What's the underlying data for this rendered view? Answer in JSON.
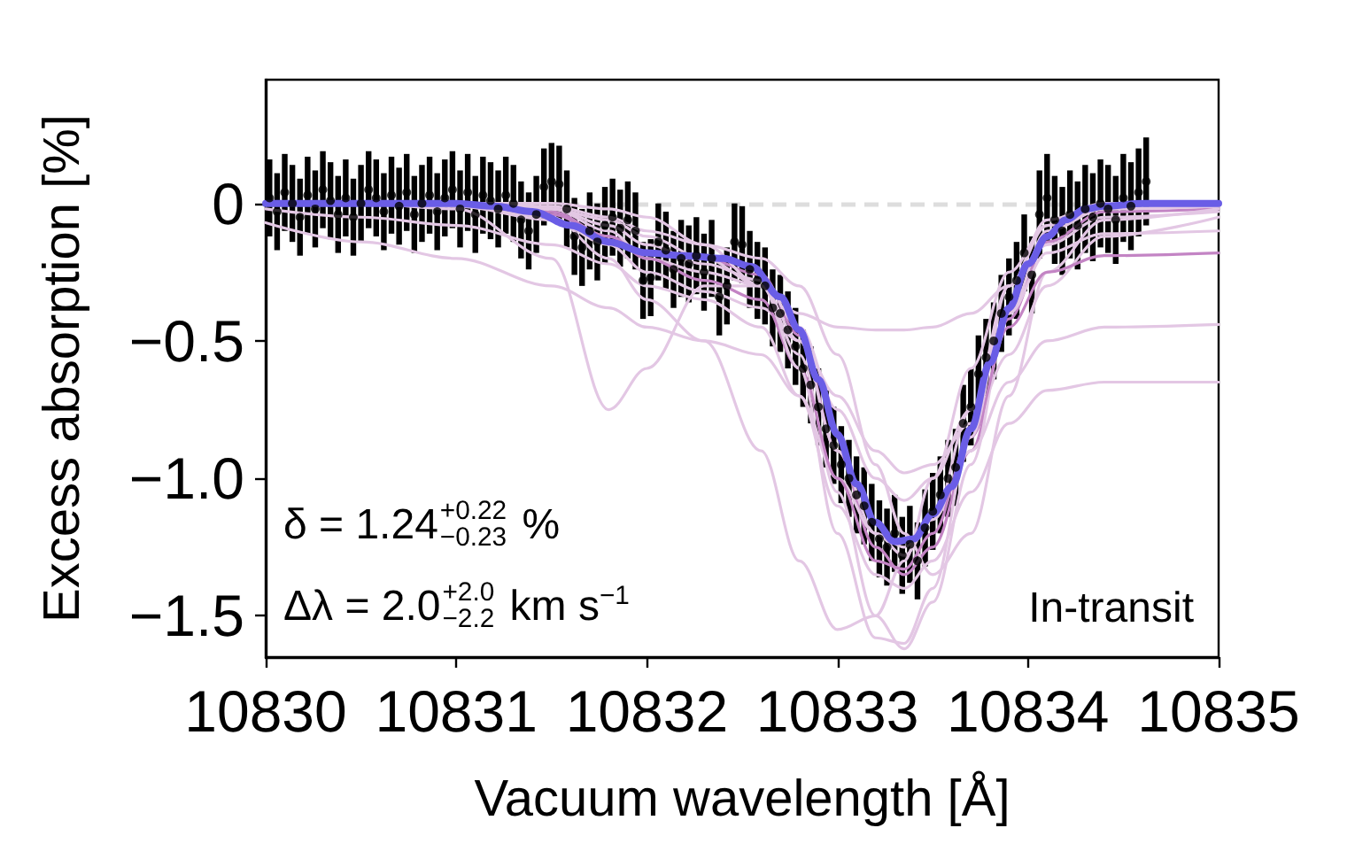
{
  "chart_data": {
    "type": "line",
    "xlabel": "Vacuum wavelength [Å]",
    "ylabel": "Excess absorption [%]",
    "xlim": [
      10830,
      10835
    ],
    "xticks": [
      10830,
      10831,
      10832,
      10833,
      10834,
      10835
    ],
    "ylim": [
      -1.65,
      0.45
    ],
    "yticks": [
      0,
      {
        "value": -0.5,
        "label": "−0.5"
      },
      {
        "value": -1,
        "label": "−1.0"
      },
      {
        "value": -1.5,
        "label": "−1.5"
      }
    ],
    "x": [
      10830,
      10830.5,
      10831,
      10831.5,
      10831.8,
      10832,
      10832.3,
      10832.6,
      10832.8,
      10833,
      10833.2,
      10833.35,
      10833.5,
      10833.7,
      10833.9,
      10834.1,
      10834.4,
      10835
    ],
    "ref_lines": [
      {
        "axis": "y",
        "value": 0,
        "color": "#dddddd",
        "line_style": "dashed"
      }
    ],
    "annotations": [
      "δ = 1.24$^{+0.22}$$_{−0.23}$ %",
      "Δλ = 2.0$^{+2.0}$$_{−2.2}$ km s$^{−1}$",
      "In-transit"
    ],
    "series": [
      {
        "color": "#c384c4",
        "values": [
          0,
          0,
          0,
          -0.03,
          -0.12,
          -0.18,
          -0.2,
          -0.26,
          -0.48,
          -0.9,
          -1.25,
          -1.35,
          -1.25,
          -0.9,
          -0.42,
          -0.14,
          -0.03,
          -0.02
        ]
      },
      {
        "color": "#e3c7e4",
        "values": [
          0,
          0,
          0,
          -0.02,
          -0.1,
          -0.2,
          -0.25,
          -0.3,
          -0.55,
          -1.05,
          -1.5,
          -1.62,
          -1.45,
          -0.95,
          -0.4,
          -0.1,
          -0.02,
          -0.01
        ]
      },
      {
        "color": "#e3c7e4",
        "values": [
          0,
          0,
          -0.01,
          -0.06,
          -0.15,
          -0.25,
          -0.32,
          -0.38,
          -0.5,
          -0.7,
          -0.9,
          -0.98,
          -0.95,
          -0.8,
          -0.55,
          -0.3,
          -0.12,
          -0.05
        ]
      },
      {
        "color": "#e3c7e4",
        "values": [
          -0.07,
          -0.14,
          -0.2,
          -0.3,
          -0.38,
          -0.45,
          -0.5,
          -0.55,
          -0.7,
          -1,
          -1.2,
          -1.25,
          -1.15,
          -0.9,
          -0.65,
          -0.5,
          -0.45,
          -0.44
        ]
      },
      {
        "color": "#e3c7e4",
        "values": [
          -0.02,
          -0.05,
          -0.08,
          -0.15,
          -0.22,
          -0.3,
          -0.35,
          -0.45,
          -0.7,
          -1.1,
          -1.35,
          -1.4,
          -1.3,
          -1.05,
          -0.8,
          -0.68,
          -0.65,
          -0.65
        ]
      },
      {
        "color": "#e3c7e4",
        "values": [
          0,
          0,
          -0.02,
          -0.2,
          -0.75,
          -0.6,
          -0.3,
          -0.3,
          -0.5,
          -0.9,
          -1.2,
          -1.28,
          -1.15,
          -0.75,
          -0.3,
          -0.08,
          -0.01,
          0
        ]
      },
      {
        "color": "#e3c7e4",
        "values": [
          0,
          0,
          0,
          0,
          -0.02,
          -0.05,
          -0.15,
          -0.3,
          -0.4,
          -0.45,
          -0.46,
          -0.46,
          -0.45,
          -0.4,
          -0.3,
          -0.15,
          -0.05,
          -0.03
        ]
      },
      {
        "color": "#e3c7e4",
        "values": [
          0,
          0,
          -0.01,
          -0.05,
          -0.2,
          -0.35,
          -0.5,
          -0.9,
          -1.3,
          -1.55,
          -1.5,
          -1.3,
          -1,
          -0.6,
          -0.25,
          -0.08,
          -0.02,
          -0.01
        ]
      },
      {
        "color": "#e3c7e4",
        "values": [
          0,
          0,
          0,
          -0.01,
          -0.05,
          -0.1,
          -0.15,
          -0.2,
          -0.3,
          -0.55,
          -0.95,
          -1.2,
          -1.35,
          -1.2,
          -0.7,
          -0.25,
          -0.06,
          -0.02
        ]
      },
      {
        "color": "#c384c4",
        "values": [
          0,
          0,
          0,
          -0.04,
          -0.12,
          -0.2,
          -0.28,
          -0.35,
          -0.6,
          -1,
          -1.3,
          -1.33,
          -1.2,
          -0.85,
          -0.45,
          -0.25,
          -0.19,
          -0.18
        ]
      },
      {
        "color": "#e3c7e4",
        "values": [
          0,
          0,
          0,
          -0.02,
          -0.06,
          -0.12,
          -0.2,
          -0.3,
          -0.6,
          -1.2,
          -1.58,
          -1.6,
          -1.4,
          -0.85,
          -0.3,
          -0.06,
          0,
          0
        ]
      },
      {
        "color": "#e3c7e4",
        "values": [
          0,
          0,
          0,
          -0.02,
          -0.08,
          -0.15,
          -0.22,
          -0.28,
          -0.45,
          -0.75,
          -1,
          -1.08,
          -1,
          -0.75,
          -0.4,
          -0.18,
          -0.11,
          -0.1
        ]
      },
      {
        "type": "scatter",
        "color": "#000000",
        "marker": "circle",
        "x": [
          10830.02,
          10830.06,
          10830.1,
          10830.14,
          10830.18,
          10830.22,
          10830.26,
          10830.3,
          10830.34,
          10830.38,
          10830.42,
          10830.46,
          10830.5,
          10830.54,
          10830.58,
          10830.62,
          10830.66,
          10830.7,
          10830.74,
          10830.78,
          10830.82,
          10830.86,
          10830.9,
          10830.94,
          10830.98,
          10831.02,
          10831.06,
          10831.1,
          10831.14,
          10831.18,
          10831.22,
          10831.26,
          10831.3,
          10831.34,
          10831.38,
          10831.42,
          10831.46,
          10831.5,
          10831.54,
          10831.58,
          10831.62,
          10831.66,
          10831.7,
          10831.74,
          10831.78,
          10831.82,
          10831.86,
          10831.9,
          10831.94,
          10831.98,
          10832.02,
          10832.06,
          10832.1,
          10832.14,
          10832.18,
          10832.22,
          10832.26,
          10832.3,
          10832.34,
          10832.38,
          10832.42,
          10832.46,
          10832.5,
          10832.54,
          10832.58,
          10832.62,
          10832.66,
          10832.7,
          10832.74,
          10832.78,
          10832.82,
          10832.86,
          10832.9,
          10832.94,
          10832.98,
          10833.02,
          10833.06,
          10833.1,
          10833.14,
          10833.18,
          10833.22,
          10833.26,
          10833.3,
          10833.34,
          10833.38,
          10833.42,
          10833.46,
          10833.5,
          10833.54,
          10833.58,
          10833.62,
          10833.66,
          10833.7,
          10833.74,
          10833.78,
          10833.82,
          10833.86,
          10833.9,
          10833.94,
          10833.98,
          10834.02,
          10834.06,
          10834.1,
          10834.14,
          10834.18,
          10834.22,
          10834.26,
          10834.3,
          10834.34,
          10834.38,
          10834.42,
          10834.46,
          10834.5,
          10834.54,
          10834.58,
          10834.62
        ],
        "values": [
          0.02,
          -0.03,
          0.04,
          0,
          -0.05,
          0.03,
          -0.02,
          0.05,
          0.01,
          -0.04,
          0.02,
          -0.05,
          0,
          0.05,
          0.02,
          -0.03,
          0.03,
          -0.01,
          0.04,
          -0.04,
          0,
          0.03,
          -0.03,
          0.02,
          0.05,
          -0.02,
          0.04,
          -0.04,
          0.03,
          0.01,
          -0.02,
          0.03,
          0,
          -0.06,
          -0.1,
          -0.04,
          0.06,
          0.08,
          0.07,
          -0.02,
          -0.12,
          -0.16,
          -0.1,
          -0.14,
          -0.08,
          -0.05,
          -0.09,
          -0.06,
          -0.1,
          -0.28,
          -0.27,
          -0.14,
          -0.17,
          -0.24,
          -0.2,
          -0.22,
          -0.19,
          -0.25,
          -0.2,
          -0.34,
          -0.3,
          -0.14,
          -0.15,
          -0.24,
          -0.28,
          -0.3,
          -0.38,
          -0.4,
          -0.46,
          -0.52,
          -0.6,
          -0.66,
          -0.74,
          -0.82,
          -0.88,
          -0.95,
          -1,
          -1.06,
          -1.1,
          -1.16,
          -1.22,
          -1.25,
          -1.2,
          -1.28,
          -1.24,
          -1.3,
          -1.18,
          -1.12,
          -1.06,
          -1,
          -0.96,
          -0.8,
          -0.74,
          -0.62,
          -0.56,
          -0.5,
          -0.4,
          -0.34,
          -0.28,
          -0.18,
          -0.26,
          -0.04,
          0.02,
          -0.06,
          -0.1,
          -0.04,
          -0.08,
          -0.02,
          -0.05,
          0,
          -0.02,
          -0.06,
          0.02,
          -0.01,
          0.04,
          0.08
        ],
        "errors": [
          0.14,
          0.14,
          0.14,
          0.14,
          0.14,
          0.14,
          0.14,
          0.14,
          0.14,
          0.14,
          0.14,
          0.14,
          0.14,
          0.14,
          0.14,
          0.14,
          0.14,
          0.14,
          0.14,
          0.14,
          0.14,
          0.14,
          0.14,
          0.14,
          0.14,
          0.14,
          0.14,
          0.14,
          0.14,
          0.14,
          0.14,
          0.14,
          0.14,
          0.14,
          0.14,
          0.14,
          0.14,
          0.14,
          0.14,
          0.14,
          0.14,
          0.14,
          0.14,
          0.14,
          0.14,
          0.14,
          0.14,
          0.14,
          0.14,
          0.14,
          0.14,
          0.14,
          0.14,
          0.14,
          0.14,
          0.14,
          0.14,
          0.14,
          0.14,
          0.14,
          0.14,
          0.14,
          0.14,
          0.14,
          0.14,
          0.14,
          0.14,
          0.14,
          0.14,
          0.14,
          0.14,
          0.14,
          0.14,
          0.14,
          0.14,
          0.14,
          0.14,
          0.14,
          0.14,
          0.14,
          0.14,
          0.14,
          0.14,
          0.14,
          0.14,
          0.14,
          0.14,
          0.14,
          0.14,
          0.14,
          0.14,
          0.14,
          0.14,
          0.14,
          0.14,
          0.14,
          0.14,
          0.14,
          0.14,
          0.14,
          0.14,
          0.16,
          0.16,
          0.16,
          0.16,
          0.16,
          0.16,
          0.16,
          0.16,
          0.16,
          0.16,
          0.16,
          0.16,
          0.16,
          0.16,
          0.16
        ]
      },
      {
        "type": "line",
        "color": "#6a5de6",
        "x": [
          10830,
          10831,
          10831.2,
          10831.4,
          10831.6,
          10831.8,
          10832,
          10832.2,
          10832.4,
          10832.55,
          10832.7,
          10832.8,
          10832.9,
          10833,
          10833.1,
          10833.2,
          10833.3,
          10833.4,
          10833.5,
          10833.6,
          10833.7,
          10833.8,
          10833.9,
          10834,
          10834.1,
          10834.2,
          10834.3,
          10834.4,
          10834.6,
          10835
        ],
        "values": [
          0,
          0,
          -0.01,
          -0.03,
          -0.08,
          -0.14,
          -0.18,
          -0.19,
          -0.2,
          -0.23,
          -0.34,
          -0.46,
          -0.64,
          -0.84,
          -1.02,
          -1.16,
          -1.23,
          -1.22,
          -1.13,
          -1.03,
          -0.82,
          -0.58,
          -0.38,
          -0.22,
          -0.12,
          -0.06,
          -0.02,
          -0.01,
          0,
          0
        ]
      }
    ]
  }
}
